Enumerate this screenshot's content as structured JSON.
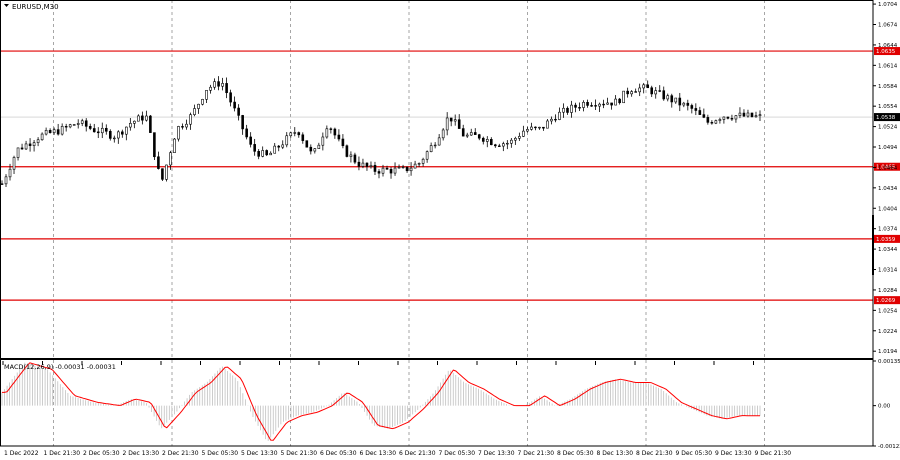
{
  "chart_data": [
    {
      "type": "candlestick",
      "symbol_label": "EURUSD,M30",
      "ylim": [
        1.0184,
        1.071
      ],
      "y_ticks": [
        "1.0704",
        "1.0674",
        "1.0644",
        "1.0614",
        "1.0584",
        "1.0554",
        "1.0524",
        "1.0494",
        "1.0464",
        "1.0434",
        "1.0404",
        "1.0374",
        "1.0344",
        "1.0314",
        "1.0284",
        "1.0254",
        "1.0224",
        "1.0194"
      ],
      "y_tick_values": [
        1.0704,
        1.0674,
        1.0644,
        1.0614,
        1.0584,
        1.0554,
        1.0524,
        1.0494,
        1.0464,
        1.0434,
        1.0404,
        1.0374,
        1.0344,
        1.0314,
        1.0284,
        1.0254,
        1.0224,
        1.0194
      ],
      "current_price": {
        "label": "1.0538",
        "value": 1.0538
      },
      "levels": [
        {
          "label": "1.0635",
          "value": 1.0635
        },
        {
          "label": "1.0465",
          "value": 1.0465
        },
        {
          "label": "1.0359",
          "value": 1.0359
        },
        {
          "label": "1.0269",
          "value": 1.0269
        }
      ],
      "level_color": "#e00000",
      "price_path": {
        "t": [
          0,
          0.02,
          0.05,
          0.08,
          0.1,
          0.12,
          0.15,
          0.17,
          0.19,
          0.21,
          0.23,
          0.25,
          0.27,
          0.29,
          0.31,
          0.33,
          0.35,
          0.37,
          0.39,
          0.41,
          0.43,
          0.45,
          0.47,
          0.49,
          0.51,
          0.53,
          0.55,
          0.57,
          0.59,
          0.61,
          0.63,
          0.65,
          0.67,
          0.69,
          0.71,
          0.73,
          0.75,
          0.77,
          0.79,
          0.81,
          0.83,
          0.85,
          0.87,
          0.89,
          0.91,
          0.93,
          0.95,
          0.97,
          1.0
        ],
        "price": [
          1.044,
          1.049,
          1.051,
          1.052,
          1.053,
          1.052,
          1.051,
          1.053,
          1.054,
          1.044,
          1.052,
          1.054,
          1.058,
          1.059,
          1.054,
          1.049,
          1.048,
          1.05,
          1.052,
          1.048,
          1.053,
          1.049,
          1.047,
          1.046,
          1.046,
          1.046,
          1.047,
          1.05,
          1.054,
          1.051,
          1.051,
          1.05,
          1.05,
          1.052,
          1.052,
          1.054,
          1.055,
          1.056,
          1.056,
          1.056,
          1.058,
          1.058,
          1.057,
          1.056,
          1.055,
          1.053,
          1.054,
          1.054,
          1.0538
        ]
      }
    },
    {
      "type": "bar",
      "indicator_label": "MACD(12,26,9) -0.00031 -0.00031",
      "ylim": [
        -0.00122,
        0.00135
      ],
      "y_ticks": [
        "0.00135",
        "0.00",
        "-0.00122"
      ],
      "y_tick_values": [
        0.00135,
        0.0,
        -0.00122
      ],
      "signal_color": "#ff0000",
      "histogram_color": "#c0c0c0",
      "macd_path": {
        "t": [
          0,
          0.03,
          0.06,
          0.09,
          0.12,
          0.15,
          0.17,
          0.19,
          0.21,
          0.23,
          0.25,
          0.27,
          0.29,
          0.31,
          0.33,
          0.35,
          0.37,
          0.39,
          0.41,
          0.43,
          0.45,
          0.47,
          0.49,
          0.51,
          0.53,
          0.55,
          0.57,
          0.59,
          0.61,
          0.63,
          0.65,
          0.67,
          0.69,
          0.71,
          0.73,
          0.75,
          0.77,
          0.79,
          0.81,
          0.83,
          0.85,
          0.87,
          0.89,
          0.91,
          0.93,
          0.95,
          0.97,
          1.0
        ],
        "value": [
          0.0004,
          0.0013,
          0.0011,
          0.0003,
          0.0001,
          0.0,
          0.0002,
          0.0001,
          -0.0007,
          -0.0002,
          0.0004,
          0.0007,
          0.0012,
          0.0008,
          -0.0003,
          -0.0011,
          -0.0005,
          -0.0003,
          -0.0002,
          0.0,
          0.0004,
          0.0001,
          -0.0006,
          -0.0007,
          -0.0005,
          -0.0001,
          0.0004,
          0.0011,
          0.0007,
          0.0005,
          0.0002,
          0.0,
          0.0,
          0.0003,
          0.0,
          0.0002,
          0.0005,
          0.0007,
          0.0008,
          0.0007,
          0.0007,
          0.0005,
          0.0001,
          -0.0001,
          -0.0003,
          -0.0004,
          -0.0003,
          -0.00031
        ]
      }
    }
  ],
  "x_axis": {
    "labels": [
      "1 Dec 2022",
      "1 Dec 21:30",
      "2 Dec 05:30",
      "2 Dec 13:30",
      "2 Dec 21:30",
      "5 Dec 05:30",
      "5 Dec 13:30",
      "5 Dec 21:30",
      "6 Dec 05:30",
      "6 Dec 13:30",
      "6 Dec 21:30",
      "7 Dec 05:30",
      "7 Dec 13:30",
      "7 Dec 21:30",
      "8 Dec 05:30",
      "8 Dec 13:30",
      "8 Dec 21:30",
      "9 Dec 05:30",
      "9 Dec 13:30",
      "9 Dec 21:30"
    ]
  },
  "colors": {
    "grid": "#808080",
    "axis": "#000000",
    "candle": "#000000",
    "separator": "#000000"
  }
}
